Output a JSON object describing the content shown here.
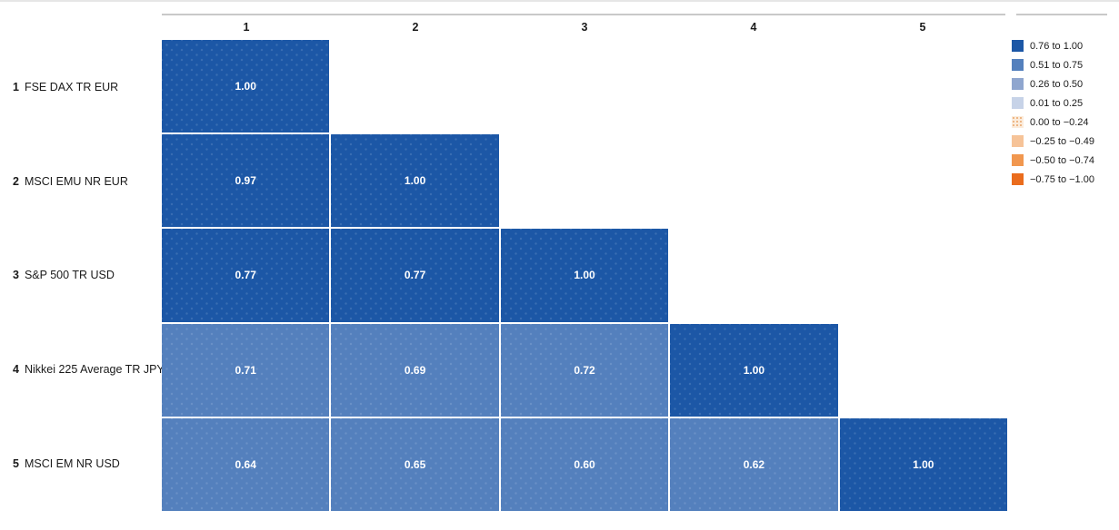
{
  "chart_data": {
    "type": "heatmap",
    "subtype": "correlation-matrix-lower-triangle",
    "column_labels": [
      "1",
      "2",
      "3",
      "4",
      "5"
    ],
    "rows": [
      {
        "num": "1",
        "name": "FSE DAX TR EUR",
        "cells": [
          {
            "col": 1,
            "label": "1.00",
            "value": 1.0,
            "color": "#1c57a6"
          }
        ]
      },
      {
        "num": "2",
        "name": "MSCI EMU NR EUR",
        "cells": [
          {
            "col": 1,
            "label": "0.97",
            "value": 0.97,
            "color": "#1c57a6"
          },
          {
            "col": 2,
            "label": "1.00",
            "value": 1.0,
            "color": "#1c57a6"
          }
        ]
      },
      {
        "num": "3",
        "name": "S&P 500 TR USD",
        "cells": [
          {
            "col": 1,
            "label": "0.77",
            "value": 0.77,
            "color": "#1c57a6"
          },
          {
            "col": 2,
            "label": "0.77",
            "value": 0.77,
            "color": "#1c57a6"
          },
          {
            "col": 3,
            "label": "1.00",
            "value": 1.0,
            "color": "#1c57a6"
          }
        ]
      },
      {
        "num": "4",
        "name": "Nikkei 225 Average TR JPY",
        "cells": [
          {
            "col": 1,
            "label": "0.71",
            "value": 0.71,
            "color": "#5480bd"
          },
          {
            "col": 2,
            "label": "0.69",
            "value": 0.69,
            "color": "#5480bd"
          },
          {
            "col": 3,
            "label": "0.72",
            "value": 0.72,
            "color": "#5480bd"
          },
          {
            "col": 4,
            "label": "1.00",
            "value": 1.0,
            "color": "#1c57a6"
          }
        ]
      },
      {
        "num": "5",
        "name": "MSCI EM NR USD",
        "cells": [
          {
            "col": 1,
            "label": "0.64",
            "value": 0.64,
            "color": "#5480bd"
          },
          {
            "col": 2,
            "label": "0.65",
            "value": 0.65,
            "color": "#5480bd"
          },
          {
            "col": 3,
            "label": "0.60",
            "value": 0.6,
            "color": "#5480bd"
          },
          {
            "col": 4,
            "label": "0.62",
            "value": 0.62,
            "color": "#5480bd"
          },
          {
            "col": 5,
            "label": "1.00",
            "value": 1.0,
            "color": "#1c57a6"
          }
        ]
      }
    ],
    "legend": {
      "position": "top-right",
      "items": [
        {
          "label": "0.76 to 1.00",
          "color": "#1c57a6"
        },
        {
          "label": "0.51 to 0.75",
          "color": "#5480bd"
        },
        {
          "label": "0.26 to 0.50",
          "color": "#8fa6cf"
        },
        {
          "label": "0.01 to 0.25",
          "color": "#c7d3e8"
        },
        {
          "label": "0.00 to −0.24",
          "color": "#fbecdc",
          "dotted": true
        },
        {
          "label": "−0.25 to −0.49",
          "color": "#f6c398"
        },
        {
          "label": "−0.50 to −0.74",
          "color": "#f1974f"
        },
        {
          "label": "−0.75 to −1.00",
          "color": "#ea6c1d"
        }
      ]
    },
    "colors": {
      "value_text": "#ffffff",
      "label_text": "#1a1a1a",
      "axis_line": "#c9c9c9",
      "top_border": "#e6e6e6",
      "background": "#ffffff"
    }
  }
}
